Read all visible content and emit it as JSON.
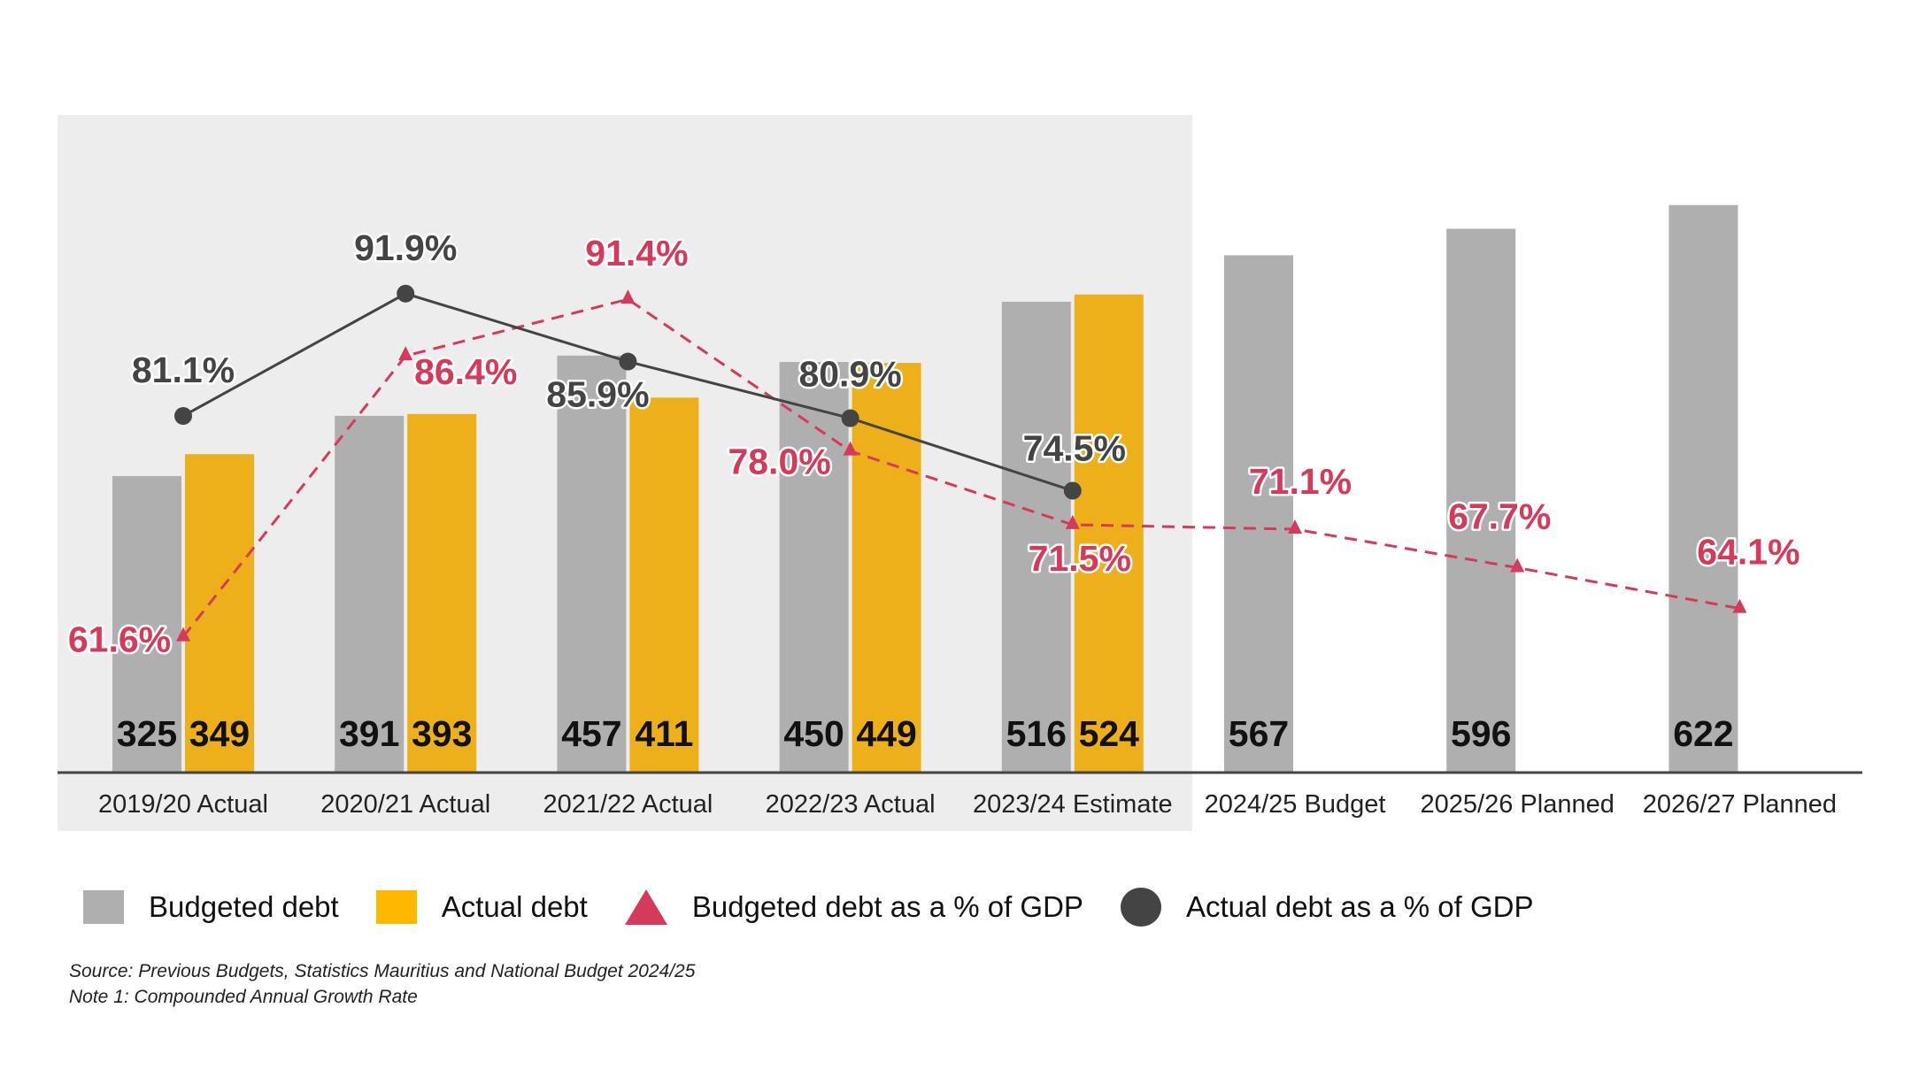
{
  "chart_data": {
    "type": "bar",
    "title": "",
    "categories": [
      "2019/20 Actual",
      "2020/21 Actual",
      "2021/22 Actual",
      "2022/23 Actual",
      "2023/24 Estimate",
      "2024/25 Budget",
      "2025/26 Planned",
      "2026/27 Planned"
    ],
    "highlighted_categories": [
      "2019/20 Actual",
      "2020/21 Actual",
      "2021/22 Actual",
      "2022/23 Actual",
      "2023/24 Estimate"
    ],
    "series": [
      {
        "name": "Budgeted debt",
        "kind": "bar",
        "color": "#AFAFAF",
        "values": [
          325,
          391,
          457,
          450,
          516,
          567,
          596,
          622
        ]
      },
      {
        "name": "Actual debt",
        "kind": "bar",
        "color": "#EDB01A",
        "values": [
          349,
          393,
          411,
          449,
          524,
          null,
          null,
          null
        ]
      },
      {
        "name": "Budgeted debt as a % of GDP",
        "kind": "line",
        "style": "dashed",
        "marker": "triangle",
        "color": "#D63A5A",
        "values": [
          61.6,
          86.4,
          91.4,
          78.0,
          71.5,
          71.1,
          67.7,
          64.1
        ],
        "labels": [
          "61.6%",
          "86.4%",
          "91.4%",
          "78.0%",
          "71.5%",
          "71.1%",
          "67.7%",
          "64.1%"
        ]
      },
      {
        "name": "Actual debt as a % of GDP",
        "kind": "line",
        "style": "solid",
        "marker": "circle",
        "color": "#444444",
        "values": [
          81.1,
          91.9,
          85.9,
          80.9,
          74.5,
          null,
          null,
          null
        ],
        "labels": [
          "81.1%",
          "91.9%",
          "85.9%",
          "80.9%",
          "74.5%",
          null,
          null,
          null
        ]
      }
    ],
    "xlabel": "",
    "ylabel": "",
    "grid": false,
    "legend_position": "bottom"
  },
  "legend": {
    "items": [
      "Budgeted debt",
      "Actual debt",
      "Budgeted debt as a % of GDP",
      "Actual debt as a % of GDP"
    ]
  },
  "notes": {
    "source": "Source: Previous Budgets, Statistics Mauritius and National Budget 2024/25",
    "note": "Note 1: Compounded Annual Growth Rate"
  }
}
